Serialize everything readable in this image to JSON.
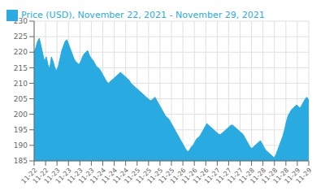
{
  "chart_data": {
    "type": "area",
    "x": [
      0,
      1,
      2,
      3,
      4,
      5,
      6,
      7,
      8,
      9,
      10,
      11,
      12,
      13,
      14,
      15,
      16,
      17,
      18,
      19,
      20,
      21,
      22,
      23,
      24,
      25,
      26,
      27,
      28,
      29,
      30,
      31,
      32,
      33,
      34,
      35,
      36,
      37,
      38,
      39,
      40,
      41,
      42,
      43,
      44,
      45,
      46,
      47,
      48,
      49,
      50,
      51,
      52,
      53,
      54,
      55,
      56,
      57,
      58,
      59,
      60,
      61,
      62,
      63,
      64,
      65,
      66,
      67,
      68,
      69,
      70,
      71,
      72,
      73,
      74,
      75,
      76,
      77,
      78,
      79,
      80,
      81,
      82,
      83,
      84,
      85,
      86,
      87,
      88,
      89,
      90,
      91,
      92,
      93,
      94,
      95,
      96,
      97,
      98,
      99,
      100,
      101,
      102,
      103,
      104,
      105,
      106,
      107,
      108,
      109,
      110,
      111,
      112,
      113,
      114,
      115,
      116,
      117,
      118,
      119,
      120,
      121,
      122,
      123,
      124,
      125,
      126,
      127,
      128,
      129,
      130,
      131,
      132,
      133,
      134,
      135,
      136,
      137,
      138,
      139,
      140,
      141,
      142,
      143,
      144,
      145,
      146,
      147,
      148,
      149,
      150,
      151,
      152,
      153,
      154,
      155,
      156,
      157,
      158,
      159
    ],
    "series": [
      {
        "name": "Price (USD), November 22, 2021 - November 29, 2021",
        "color": "#29ABE2",
        "values": [
          220.0,
          221.5,
          223.5,
          224.5,
          222.0,
          219.5,
          217.0,
          218.5,
          216.0,
          214.5,
          218.5,
          217.0,
          215.0,
          214.0,
          215.5,
          218.0,
          220.5,
          222.0,
          223.5,
          224.0,
          222.5,
          221.0,
          219.5,
          218.0,
          217.0,
          216.5,
          216.0,
          217.0,
          218.5,
          219.5,
          220.0,
          220.5,
          219.0,
          218.0,
          217.5,
          216.5,
          215.5,
          215.0,
          214.5,
          213.5,
          212.5,
          211.5,
          210.5,
          210.0,
          210.5,
          211.0,
          211.5,
          212.0,
          212.5,
          213.0,
          213.5,
          213.0,
          212.5,
          212.0,
          211.5,
          211.0,
          210.0,
          209.5,
          209.0,
          208.5,
          208.0,
          207.5,
          207.0,
          206.5,
          206.0,
          205.5,
          205.0,
          204.5,
          204.5,
          205.0,
          205.5,
          204.5,
          203.5,
          202.5,
          201.5,
          200.5,
          199.5,
          199.0,
          198.5,
          197.5,
          196.5,
          195.5,
          194.5,
          193.5,
          192.5,
          191.5,
          190.5,
          189.5,
          188.5,
          188.0,
          188.5,
          189.5,
          190.0,
          191.0,
          192.0,
          192.5,
          193.0,
          194.0,
          195.0,
          196.0,
          197.0,
          196.5,
          196.0,
          195.5,
          195.0,
          194.5,
          194.0,
          193.5,
          193.5,
          194.0,
          194.5,
          195.0,
          195.5,
          196.0,
          196.5,
          196.5,
          196.0,
          195.5,
          195.0,
          194.5,
          194.0,
          193.5,
          192.5,
          191.5,
          190.5,
          189.5,
          189.0,
          189.5,
          190.0,
          190.5,
          191.0,
          191.5,
          190.5,
          189.5,
          188.5,
          188.0,
          187.5,
          187.0,
          186.5,
          186.0,
          187.0,
          188.5,
          190.0,
          191.5,
          193.0,
          195.0,
          197.5,
          199.5,
          200.5,
          201.5,
          202.0,
          202.5,
          203.0,
          202.5,
          202.0,
          203.0,
          204.0,
          205.0,
          205.5,
          204.5
        ]
      }
    ],
    "xlim": [
      0,
      159
    ],
    "xticks": [
      {
        "value": 0,
        "label": "11-22"
      },
      {
        "value": 6.6303,
        "label": "11-22"
      },
      {
        "value": 13.2447,
        "label": "11-23"
      },
      {
        "value": 19.875,
        "label": "11-23"
      },
      {
        "value": 26.5053,
        "label": "11-23"
      },
      {
        "value": 33.1197,
        "label": "11-23"
      },
      {
        "value": 39.75,
        "label": "11-24"
      },
      {
        "value": 46.3803,
        "label": "11-24"
      },
      {
        "value": 52.9947,
        "label": "11-24"
      },
      {
        "value": 59.625,
        "label": "11-25"
      },
      {
        "value": 66.2553,
        "label": "11-25"
      },
      {
        "value": 72.8697,
        "label": "11-25"
      },
      {
        "value": 79.5,
        "label": "11-25"
      },
      {
        "value": 86.1303,
        "label": "11-26"
      },
      {
        "value": 92.7447,
        "label": "11-26"
      },
      {
        "value": 99.375,
        "label": "11-26"
      },
      {
        "value": 106.0053,
        "label": "11-27"
      },
      {
        "value": 112.6197,
        "label": "11-27"
      },
      {
        "value": 119.25,
        "label": "11-27"
      },
      {
        "value": 125.8803,
        "label": "11-28"
      },
      {
        "value": 132.4947,
        "label": "11-28"
      },
      {
        "value": 139.125,
        "label": "11-28"
      },
      {
        "value": 145.7553,
        "label": "11-28"
      },
      {
        "value": 152.3697,
        "label": "11-29"
      },
      {
        "value": 159,
        "label": "11-29"
      }
    ],
    "ylim": [
      185,
      230
    ],
    "yticks": [
      185,
      190,
      195,
      200,
      205,
      210,
      215,
      220,
      225,
      230
    ],
    "grid": true,
    "legend": "upper left"
  }
}
